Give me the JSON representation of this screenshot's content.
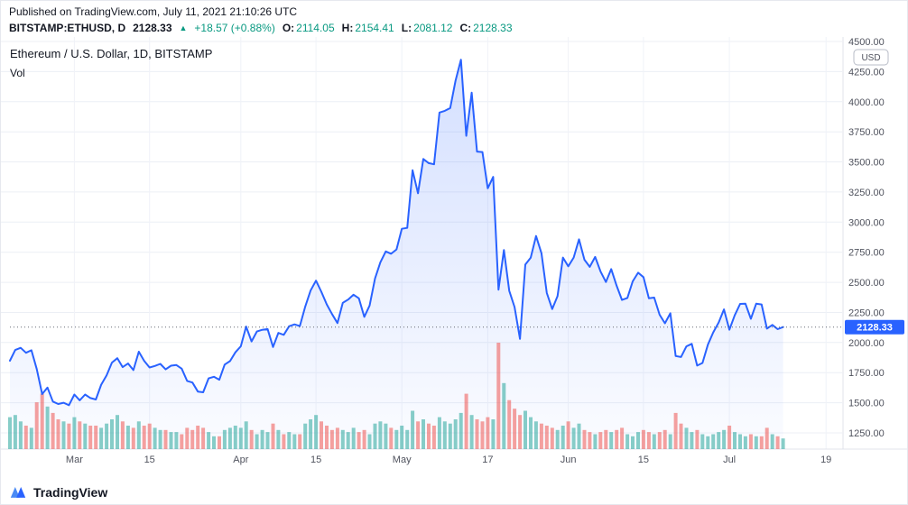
{
  "header": {
    "published": "Published on TradingView.com, July 11, 2021 21:10:26 UTC",
    "symbol": "BITSTAMP:ETHUSD, D",
    "last_price": "2128.33",
    "direction_icon": "▲",
    "change": "+18.57 (+0.88%)",
    "ohlc": {
      "o_label": "O:",
      "o_value": "2114.05",
      "h_label": "H:",
      "h_value": "2154.41",
      "l_label": "L:",
      "l_value": "2081.12",
      "c_label": "C:",
      "c_value": "2128.33"
    }
  },
  "footer": {
    "brand": "TradingView"
  },
  "colors": {
    "up_green": "#089981",
    "line_blue": "#2962ff",
    "vol_up": "rgba(38,166,154,0.55)",
    "vol_down": "rgba(239,83,80,0.55)",
    "label_bg": "#2962ff",
    "axis_text": "#50535e",
    "grid": "#eceff5",
    "grid_vertical": "#f0f2f8",
    "axis_border": "#e0e3eb",
    "last_price_dotted": "#565a66"
  },
  "chart_data": {
    "type": "line",
    "title": "Ethereum / U.S. Dollar, 1D, BITSTAMP",
    "volume_label": "Vol",
    "symbol": "BITSTAMP:ETHUSD",
    "interval": "1D",
    "start_date": "2021-02-17",
    "last_price": 2128.33,
    "last_ohlc": {
      "open": 2114.05,
      "high": 2154.41,
      "low": 2081.12,
      "close": 2128.33
    },
    "closes": [
      1849,
      1938,
      1956,
      1915,
      1936,
      1780,
      1572,
      1626,
      1510,
      1490,
      1500,
      1480,
      1568,
      1520,
      1568,
      1539,
      1527,
      1650,
      1728,
      1833,
      1870,
      1796,
      1826,
      1771,
      1924,
      1848,
      1793,
      1806,
      1823,
      1777,
      1808,
      1813,
      1783,
      1681,
      1668,
      1593,
      1587,
      1702,
      1716,
      1691,
      1817,
      1846,
      1919,
      1969,
      2133,
      2009,
      2092,
      2106,
      2112,
      1963,
      2080,
      2064,
      2135,
      2151,
      2137,
      2299,
      2432,
      2514,
      2422,
      2317,
      2236,
      2161,
      2330,
      2357,
      2397,
      2367,
      2213,
      2307,
      2532,
      2666,
      2757,
      2737,
      2773,
      2945,
      2952,
      3431,
      3240,
      3524,
      3490,
      3480,
      3910,
      3924,
      3947,
      4174,
      4349,
      3717,
      4075,
      3586,
      3582,
      3281,
      3375,
      2439,
      2768,
      2430,
      2295,
      2030,
      2647,
      2705,
      2885,
      2742,
      2412,
      2278,
      2385,
      2706,
      2633,
      2706,
      2857,
      2688,
      2629,
      2711,
      2591,
      2503,
      2610,
      2471,
      2354,
      2370,
      2508,
      2580,
      2543,
      2367,
      2373,
      2231,
      2160,
      2243,
      1888,
      1880,
      1968,
      1989,
      1809,
      1830,
      1982,
      2084,
      2166,
      2275,
      2107,
      2226,
      2321,
      2322,
      2197,
      2322,
      2316,
      2116,
      2146,
      2111,
      2128.33
    ],
    "volumes": [
      30,
      32,
      26,
      22,
      20,
      44,
      52,
      40,
      34,
      28,
      26,
      24,
      30,
      26,
      24,
      22,
      22,
      20,
      24,
      28,
      32,
      26,
      22,
      20,
      26,
      22,
      24,
      20,
      18,
      18,
      16,
      16,
      14,
      20,
      18,
      22,
      20,
      16,
      12,
      12,
      18,
      20,
      22,
      20,
      26,
      18,
      14,
      18,
      16,
      24,
      18,
      14,
      16,
      14,
      14,
      24,
      28,
      32,
      26,
      22,
      18,
      20,
      18,
      16,
      20,
      16,
      18,
      14,
      24,
      26,
      24,
      20,
      18,
      22,
      18,
      36,
      26,
      28,
      24,
      22,
      30,
      26,
      24,
      28,
      34,
      52,
      32,
      28,
      26,
      30,
      28,
      100,
      62,
      46,
      38,
      32,
      36,
      30,
      26,
      24,
      22,
      20,
      18,
      22,
      26,
      20,
      24,
      18,
      16,
      14,
      16,
      18,
      16,
      18,
      20,
      14,
      12,
      16,
      18,
      16,
      14,
      16,
      18,
      14,
      34,
      24,
      20,
      16,
      18,
      14,
      12,
      14,
      16,
      18,
      22,
      16,
      14,
      12,
      14,
      12,
      12,
      20,
      14,
      12,
      10
    ],
    "x_axis": {
      "total_days": 155,
      "ticks": [
        {
          "label": "Mar",
          "day": 12
        },
        {
          "label": "15",
          "day": 26
        },
        {
          "label": "Apr",
          "day": 43
        },
        {
          "label": "15",
          "day": 57
        },
        {
          "label": "May",
          "day": 73
        },
        {
          "label": "17",
          "day": 89
        },
        {
          "label": "Jun",
          "day": 104
        },
        {
          "label": "15",
          "day": 118
        },
        {
          "label": "Jul",
          "day": 134
        },
        {
          "label": "19",
          "day": 152
        }
      ]
    },
    "y_axis": {
      "min": 1250,
      "max": 4500,
      "step": 250,
      "unit": "USD",
      "ticks": [
        4500,
        4250,
        4000,
        3750,
        3500,
        3250,
        3000,
        2750,
        2500,
        2250,
        2000,
        1750,
        1500,
        1250
      ]
    },
    "legend_position": "top-left",
    "grid": true
  }
}
